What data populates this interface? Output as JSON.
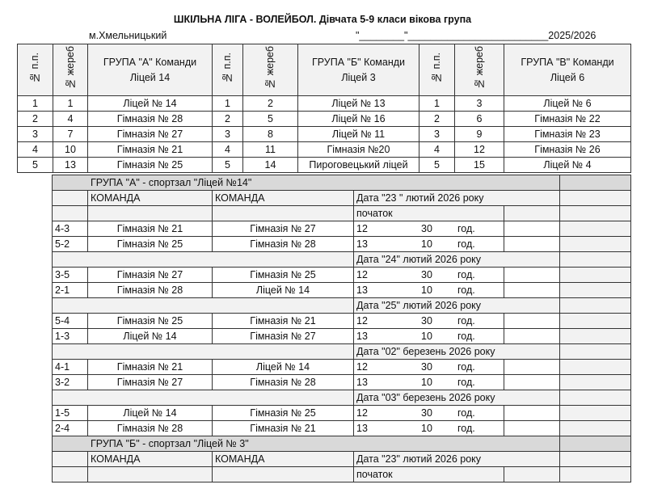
{
  "header": {
    "title": "ШКІЛЬНА ЛІГА - ВОЛЕЙБОЛ. Дівчата 5-9 класи вікова група",
    "city": "м.Хмельницький",
    "date_line": "\"________\"_________________________2025/2026"
  },
  "groups_table": {
    "col_num": "№ п.п.",
    "col_draw": "№ жереб",
    "groups": [
      {
        "title": "ГРУПА \"А\"   Команди Ліцей 14",
        "rows": [
          [
            "1",
            "1",
            "Ліцей № 14"
          ],
          [
            "2",
            "4",
            "Гімназія № 28"
          ],
          [
            "3",
            "7",
            "Гімназія № 27"
          ],
          [
            "4",
            "10",
            "Гімназія № 21"
          ],
          [
            "5",
            "13",
            "Гімназія № 25"
          ]
        ]
      },
      {
        "title": "ГРУПА \"Б\"   Команди Ліцей 3",
        "rows": [
          [
            "1",
            "2",
            "Ліцей № 13"
          ],
          [
            "2",
            "5",
            "Ліцей № 16"
          ],
          [
            "3",
            "8",
            "Ліцей № 11"
          ],
          [
            "4",
            "11",
            "Гімназія №20"
          ],
          [
            "5",
            "14",
            "Пироговецький ліцей"
          ]
        ]
      },
      {
        "title": "ГРУПА \"В\"    Команди Ліцей 6",
        "rows": [
          [
            "1",
            "3",
            "Ліцей № 6"
          ],
          [
            "2",
            "6",
            "Гімназія № 22"
          ],
          [
            "3",
            "9",
            "Гімназія № 23"
          ],
          [
            "4",
            "12",
            "Гімназія № 26"
          ],
          [
            "5",
            "15",
            "Ліцей № 4"
          ]
        ]
      }
    ]
  },
  "schedule": {
    "team_label": "КОМАНДА",
    "start_label": "початок",
    "hours_label": "год.",
    "rows": [
      {
        "type": "group",
        "text": "ГРУПА \"А\" - спортзал \"Ліцей №14\""
      },
      {
        "type": "teamhdr",
        "date": "Дата \"23 \" лютий 2026 року"
      },
      {
        "type": "start"
      },
      {
        "type": "match",
        "pair": "4-3",
        "a": "Гімназія № 21",
        "b": "Гімназія № 27",
        "h": "12",
        "m": "30"
      },
      {
        "type": "match",
        "pair": "5-2",
        "a": "Гімназія № 25",
        "b": "Гімназія № 28",
        "h": "13",
        "m": "10"
      },
      {
        "type": "date",
        "date": "Дата \"24\" лютий 2026 року"
      },
      {
        "type": "match",
        "pair": "3-5",
        "a": "Гімназія № 27",
        "b": "Гімназія № 25",
        "h": "12",
        "m": "30"
      },
      {
        "type": "match",
        "pair": "2-1",
        "a": "Гімназія № 28",
        "b": "Ліцей № 14",
        "h": "13",
        "m": "10"
      },
      {
        "type": "date",
        "date": "Дата \"25\" лютий 2026 року"
      },
      {
        "type": "match",
        "pair": "5-4",
        "a": "Гімназія № 25",
        "b": "Гімназія № 21",
        "h": "12",
        "m": "30"
      },
      {
        "type": "match",
        "pair": "1-3",
        "a": "Ліцей № 14",
        "b": "Гімназія № 27",
        "h": "13",
        "m": "10"
      },
      {
        "type": "date",
        "date": "Дата \"02\" березень 2026 року"
      },
      {
        "type": "match",
        "pair": "4-1",
        "a": "Гімназія № 21",
        "b": "Ліцей № 14",
        "h": "12",
        "m": "30"
      },
      {
        "type": "match",
        "pair": "3-2",
        "a": "Гімназія № 27",
        "b": "Гімназія № 28",
        "h": "13",
        "m": "10"
      },
      {
        "type": "date",
        "date": "Дата \"03\" березень 2026 року"
      },
      {
        "type": "match",
        "pair": "1-5",
        "a": "Ліцей № 14",
        "b": "Гімназія № 25",
        "h": "12",
        "m": "30"
      },
      {
        "type": "match",
        "pair": "2-4",
        "a": "Гімназія № 28",
        "b": "Гімназія № 21",
        "h": "13",
        "m": "10"
      },
      {
        "type": "group",
        "text": "ГРУПА \"Б\" - спортзал \"Ліцей № 3\""
      },
      {
        "type": "teamhdr",
        "date": "Дата \"23\" лютий 2026 року"
      },
      {
        "type": "start"
      }
    ]
  }
}
